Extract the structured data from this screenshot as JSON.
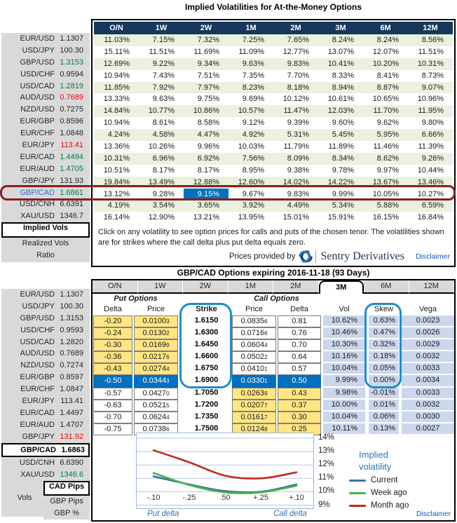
{
  "top": {
    "title": "Implied Volatilities for At-the-Money Options",
    "tenors": [
      "O/N",
      "1W",
      "2W",
      "1M",
      "2M",
      "3M",
      "6M",
      "12M"
    ],
    "sidebar": [
      {
        "pair": "EUR/USD",
        "rate": "1.1307",
        "trend": ""
      },
      {
        "pair": "USD/JPY",
        "rate": "100.30",
        "trend": ""
      },
      {
        "pair": "GBP/USD",
        "rate": "1.3153",
        "trend": "up"
      },
      {
        "pair": "USD/CHF",
        "rate": "0.9594",
        "trend": ""
      },
      {
        "pair": "USD/CAD",
        "rate": "1.2819",
        "trend": "up"
      },
      {
        "pair": "AUD/USD",
        "rate": "0.7689",
        "trend": "down"
      },
      {
        "pair": "NZD/USD",
        "rate": "0.7275",
        "trend": ""
      },
      {
        "pair": "EUR/GBP",
        "rate": "0.8596",
        "trend": ""
      },
      {
        "pair": "EUR/CHF",
        "rate": "1.0848",
        "trend": ""
      },
      {
        "pair": "EUR/JPY",
        "rate": "113.41",
        "trend": "down"
      },
      {
        "pair": "EUR/CAD",
        "rate": "1.4494",
        "trend": "up"
      },
      {
        "pair": "EUR/AUD",
        "rate": "1.4705",
        "trend": "up"
      },
      {
        "pair": "GBP/JPY",
        "rate": "131.93",
        "trend": ""
      },
      {
        "pair": "GBP/CAD",
        "rate": "1.6861",
        "trend": "up",
        "selected": true
      },
      {
        "pair": "USD/CNH",
        "rate": "6.6391",
        "trend": ""
      },
      {
        "pair": "XAU/USD",
        "rate": "1346.7",
        "trend": ""
      }
    ],
    "buttons": [
      {
        "label": "Implied Vols",
        "selected": true
      },
      {
        "label": "Realized Vols",
        "selected": false
      },
      {
        "label": "Ratio",
        "selected": false
      }
    ],
    "rows": [
      {
        "pair": "EUR/USD",
        "values": [
          "11.03%",
          "7.15%",
          "7.32%",
          "7.25%",
          "7.65%",
          "8.24%",
          "8.24%",
          "8.56%"
        ]
      },
      {
        "pair": "USD/JPY",
        "values": [
          "15.11%",
          "11.51%",
          "11.69%",
          "11.09%",
          "12.77%",
          "13.07%",
          "12.07%",
          "11.51%"
        ]
      },
      {
        "pair": "GBP/USD",
        "values": [
          "12.69%",
          "9.22%",
          "9.34%",
          "9.63%",
          "9.83%",
          "10.41%",
          "10.20%",
          "10.31%"
        ]
      },
      {
        "pair": "USD/CHF",
        "values": [
          "10.94%",
          "7.43%",
          "7.51%",
          "7.35%",
          "7.70%",
          "8.33%",
          "8.41%",
          "8.73%"
        ]
      },
      {
        "pair": "USD/CAD",
        "values": [
          "11.85%",
          "7.92%",
          "7.97%",
          "8.23%",
          "8.18%",
          "8.94%",
          "8.87%",
          "9.07%"
        ]
      },
      {
        "pair": "AUD/USD",
        "values": [
          "13.33%",
          "9.63%",
          "9.75%",
          "9.69%",
          "10.12%",
          "10.61%",
          "10.65%",
          "10.96%"
        ]
      },
      {
        "pair": "NZD/USD",
        "values": [
          "14.84%",
          "10.77%",
          "10.86%",
          "10.57%",
          "11.47%",
          "12.03%",
          "11.70%",
          "11.95%"
        ]
      },
      {
        "pair": "EUR/GBP",
        "values": [
          "10.94%",
          "8.61%",
          "8.58%",
          "9.12%",
          "9.39%",
          "9.60%",
          "9.62%",
          "9.80%"
        ]
      },
      {
        "pair": "EUR/CHF",
        "values": [
          "4.24%",
          "4.58%",
          "4.47%",
          "4.92%",
          "5.31%",
          "5.45%",
          "5.95%",
          "6.66%"
        ]
      },
      {
        "pair": "EUR/JPY",
        "values": [
          "13.36%",
          "10.26%",
          "9.96%",
          "10.03%",
          "11.79%",
          "11.89%",
          "11.46%",
          "11.39%"
        ]
      },
      {
        "pair": "EUR/CAD",
        "values": [
          "10.31%",
          "6.96%",
          "6.92%",
          "7.56%",
          "8.09%",
          "8.34%",
          "8.62%",
          "9.26%"
        ]
      },
      {
        "pair": "EUR/AUD",
        "values": [
          "10.51%",
          "8.17%",
          "8.17%",
          "8.95%",
          "9.38%",
          "9.78%",
          "9.97%",
          "10.44%"
        ]
      },
      {
        "pair": "GBP/JPY",
        "values": [
          "19.84%",
          "13.49%",
          "12.88%",
          "12.60%",
          "14.02%",
          "14.22%",
          "13.67%",
          "13.46%"
        ]
      },
      {
        "pair": "GBP/CAD",
        "values": [
          "13.12%",
          "9.28%",
          "9.15%",
          "9.67%",
          "9.83%",
          "9.99%",
          "10.05%",
          "10.27%"
        ],
        "highlight_col": 2
      },
      {
        "pair": "USD/CNH",
        "values": [
          "4.19%",
          "3.54%",
          "3.65%",
          "3.92%",
          "4.49%",
          "5.34%",
          "5.88%",
          "6.59%"
        ]
      },
      {
        "pair": "XAU/USD",
        "values": [
          "16.14%",
          "12.90%",
          "13.21%",
          "13.95%",
          "15.01%",
          "15.91%",
          "16.15%",
          "16.84%"
        ]
      }
    ],
    "note": "Click on any volatility to see option prices for calls and puts of the chosen tenor. The volatilities shown are for strikes where the call delta plus put delta equals zero.",
    "provider_prefix": "Prices provided by",
    "provider_name": "Sentry Derivatives",
    "disclaimer": "Disclaimer"
  },
  "bottom": {
    "title": "GBP/CAD Options expiring 2016-11-18 (93 Days)",
    "tabs": [
      "O/N",
      "1W",
      "2W",
      "1M",
      "2M",
      "3M",
      "6M",
      "12M"
    ],
    "selected_tab": 5,
    "sidebar": [
      {
        "pair": "EUR/USD",
        "rate": "1.1307",
        "trend": ""
      },
      {
        "pair": "USD/JPY",
        "rate": "100.30",
        "trend": ""
      },
      {
        "pair": "GBP/USD",
        "rate": "1.3153",
        "trend": ""
      },
      {
        "pair": "USD/CHF",
        "rate": "0.9593",
        "trend": ""
      },
      {
        "pair": "USD/CAD",
        "rate": "1.2820",
        "trend": ""
      },
      {
        "pair": "AUD/USD",
        "rate": "0.7689",
        "trend": ""
      },
      {
        "pair": "NZD/USD",
        "rate": "0.7274",
        "trend": ""
      },
      {
        "pair": "EUR/GBP",
        "rate": "0.8597",
        "trend": ""
      },
      {
        "pair": "EUR/CHF",
        "rate": "1.0847",
        "trend": ""
      },
      {
        "pair": "EUR/JPY",
        "rate": "113.41",
        "trend": ""
      },
      {
        "pair": "EUR/CAD",
        "rate": "1.4497",
        "trend": ""
      },
      {
        "pair": "EUR/AUD",
        "rate": "1.4707",
        "trend": ""
      },
      {
        "pair": "GBP/JPY",
        "rate": "131.92",
        "trend": "down"
      },
      {
        "pair": "GBP/CAD",
        "rate": "1.6863",
        "trend": "",
        "selected": true
      },
      {
        "pair": "USD/CNH",
        "rate": "6.6390",
        "trend": ""
      },
      {
        "pair": "XAU/USD",
        "rate": "1346.6",
        "trend": "up"
      }
    ],
    "vols_label": "Vols",
    "pips_buttons": [
      {
        "label": "CAD Pips",
        "selected": true
      },
      {
        "label": "GBP Pips",
        "selected": false
      },
      {
        "label": "GBP %",
        "selected": false
      }
    ],
    "group_put": "Put Options",
    "group_call": "Call Options",
    "col_headers": {
      "put_delta": "Delta",
      "put_price": "Price",
      "strike": "Strike",
      "call_price": "Price",
      "call_delta": "Delta",
      "vol": "Vol",
      "skew": "Skew",
      "vega": "Vega"
    },
    "rows": [
      {
        "put_delta": "-0.20",
        "put_price": "0.0100",
        "put_sub": "3",
        "strike": "1.6150",
        "call_price": "0.0835",
        "call_sub": "6",
        "call_delta": "0.81",
        "vol": "10.62%",
        "skew": "0.63%",
        "vega": "0.0023"
      },
      {
        "put_delta": "-0.24",
        "put_price": "0.0130",
        "put_sub": "2",
        "strike": "1.6300",
        "call_price": "0.0716",
        "call_sub": "6",
        "call_delta": "0.76",
        "vol": "10.46%",
        "skew": "0.47%",
        "vega": "0.0026"
      },
      {
        "put_delta": "-0.30",
        "put_price": "0.0169",
        "put_sub": "9",
        "strike": "1.6450",
        "call_price": "0.0604",
        "call_sub": "4",
        "call_delta": "0.70",
        "vol": "10.30%",
        "skew": "0.32%",
        "vega": "0.0029"
      },
      {
        "put_delta": "-0.36",
        "put_price": "0.0217",
        "put_sub": "6",
        "strike": "1.6600",
        "call_price": "0.0502",
        "call_sub": "2",
        "call_delta": "0.64",
        "vol": "10.16%",
        "skew": "0.18%",
        "vega": "0.0032"
      },
      {
        "put_delta": "-0.43",
        "put_price": "0.0274",
        "put_sub": "4",
        "strike": "1.6750",
        "call_price": "0.0410",
        "call_sub": "1",
        "call_delta": "0.57",
        "vol": "10.04%",
        "skew": "0.05%",
        "vega": "0.0033"
      },
      {
        "put_delta": "-0.50",
        "put_price": "0.0344",
        "put_sub": "3",
        "strike": "1.6900",
        "call_price": "0.0330",
        "call_sub": "1",
        "call_delta": "0.50",
        "vol": "9.99%",
        "skew": "0.00%",
        "vega": "0.0034",
        "highlighted": true
      },
      {
        "put_delta": "-0.57",
        "put_price": "0.0427",
        "put_sub": "0",
        "strike": "1.7050",
        "call_price": "0.0263",
        "call_sub": "9",
        "call_delta": "0.43",
        "vol": "9.98%",
        "skew": "-0.01%",
        "vega": "0.0033"
      },
      {
        "put_delta": "-0.63",
        "put_price": "0.0521",
        "put_sub": "5",
        "strike": "1.7200",
        "call_price": "0.0207",
        "call_sub": "7",
        "call_delta": "0.37",
        "vol": "10.00%",
        "skew": "0.01%",
        "vega": "0.0032"
      },
      {
        "put_delta": "-0.70",
        "put_price": "0.0624",
        "put_sub": "4",
        "strike": "1.7350",
        "call_price": "0.0161",
        "call_sub": "7",
        "call_delta": "0.30",
        "vol": "10.04%",
        "skew": "0.06%",
        "vega": "0.0030"
      },
      {
        "put_delta": "-0.75",
        "put_price": "0.0738",
        "put_sub": "6",
        "strike": "1.7500",
        "call_price": "0.0124",
        "call_sub": "8",
        "call_delta": "0.25",
        "vol": "10.11%",
        "skew": "0.13%",
        "vega": "0.0027"
      }
    ],
    "disclaimer": "Disclaimer"
  },
  "chart_data": {
    "type": "line",
    "x_labels": [
      "-.10",
      "-.25",
      ".50",
      "+.25",
      "+.10"
    ],
    "xlabel_left": "Put delta",
    "xlabel_right": "Call delta",
    "ylim": [
      9,
      14
    ],
    "yticks": [
      "14%",
      "13%",
      "12%",
      "11%",
      "10%",
      "9%"
    ],
    "grid": true,
    "legend_title": "Implied volatility",
    "legend_position": "right",
    "series": [
      {
        "name": "Current",
        "color": "#3B73A6",
        "values": [
          11.15,
          10.55,
          10.05,
          10.0,
          10.55
        ]
      },
      {
        "name": "Week ago",
        "color": "#44B649",
        "values": [
          11.4,
          10.5,
          9.95,
          9.95,
          10.45
        ]
      },
      {
        "name": "Month ago",
        "color": "#C4281C",
        "values": [
          13.1,
          12.2,
          11.2,
          11.0,
          11.45
        ]
      }
    ],
    "colors": {
      "grid": "#B3C8E4",
      "border": "#9DB8D9"
    }
  }
}
